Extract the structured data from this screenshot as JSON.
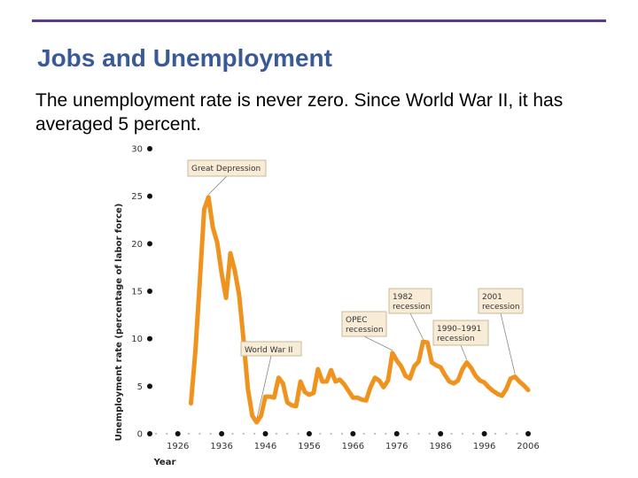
{
  "slide": {
    "title": "Jobs and Unemployment",
    "body": "The unemployment rate is never zero. Since World War II, it has averaged 5 percent."
  },
  "colors": {
    "series": "#f0921e",
    "rule": "#5b3a86",
    "title": "#3a5a96"
  },
  "chart_data": {
    "type": "line",
    "title": "",
    "xlabel": "Year",
    "ylabel": "Unemployment rate (percentage of labor force)",
    "xlim": [
      1921,
      2006
    ],
    "ylim": [
      0,
      30
    ],
    "x_ticks": [
      "1926",
      "1936",
      "1946",
      "1956",
      "1966",
      "1976",
      "1986",
      "1996",
      "2006"
    ],
    "y_ticks": [
      "0",
      "5",
      "10",
      "15",
      "20",
      "25",
      "30"
    ],
    "series": [
      {
        "name": "Unemployment rate",
        "x": [
          1929,
          1930,
          1931,
          1932,
          1933,
          1934,
          1935,
          1936,
          1937,
          1938,
          1939,
          1940,
          1941,
          1942,
          1943,
          1944,
          1945,
          1946,
          1947,
          1948,
          1949,
          1950,
          1951,
          1952,
          1953,
          1954,
          1955,
          1956,
          1957,
          1958,
          1959,
          1960,
          1961,
          1962,
          1963,
          1964,
          1965,
          1966,
          1967,
          1968,
          1969,
          1970,
          1971,
          1972,
          1973,
          1974,
          1975,
          1976,
          1977,
          1978,
          1979,
          1980,
          1981,
          1982,
          1983,
          1984,
          1985,
          1986,
          1987,
          1988,
          1989,
          1990,
          1991,
          1992,
          1993,
          1994,
          1995,
          1996,
          1997,
          1998,
          1999,
          2000,
          2001,
          2002,
          2003,
          2004,
          2005,
          2006
        ],
        "values": [
          3.2,
          8.7,
          15.9,
          23.6,
          24.9,
          21.7,
          20.1,
          16.9,
          14.3,
          19.0,
          17.2,
          14.6,
          9.9,
          4.7,
          1.9,
          1.2,
          1.9,
          3.9,
          3.9,
          3.8,
          5.9,
          5.3,
          3.3,
          3.0,
          2.9,
          5.5,
          4.4,
          4.1,
          4.3,
          6.8,
          5.5,
          5.5,
          6.7,
          5.5,
          5.7,
          5.2,
          4.5,
          3.8,
          3.8,
          3.6,
          3.5,
          4.9,
          5.9,
          5.6,
          4.9,
          5.6,
          8.5,
          7.7,
          7.1,
          6.1,
          5.8,
          7.1,
          7.6,
          9.7,
          9.6,
          7.5,
          7.2,
          7.0,
          6.2,
          5.5,
          5.3,
          5.6,
          6.8,
          7.5,
          6.9,
          6.1,
          5.6,
          5.4,
          4.9,
          4.5,
          4.2,
          4.0,
          4.7,
          5.8,
          6.0,
          5.5,
          5.1,
          4.6
        ]
      }
    ],
    "annotations": [
      {
        "id": "great-depression",
        "lines": [
          "Great Depression"
        ],
        "year": 1933,
        "value": 24.9
      },
      {
        "id": "world-war-ii",
        "lines": [
          "World War II"
        ],
        "year": 1944,
        "value": 1.2
      },
      {
        "id": "opec-recession",
        "lines": [
          "OPEC",
          "recession"
        ],
        "year": 1975,
        "value": 8.5
      },
      {
        "id": "recession-1982",
        "lines": [
          "1982",
          "recession"
        ],
        "year": 1982,
        "value": 9.7
      },
      {
        "id": "recession-1990-1991",
        "lines": [
          "1990–1991",
          "recession"
        ],
        "year": 1992,
        "value": 7.5
      },
      {
        "id": "recession-2001",
        "lines": [
          "2001",
          "recession"
        ],
        "year": 2003,
        "value": 6.0
      }
    ]
  }
}
